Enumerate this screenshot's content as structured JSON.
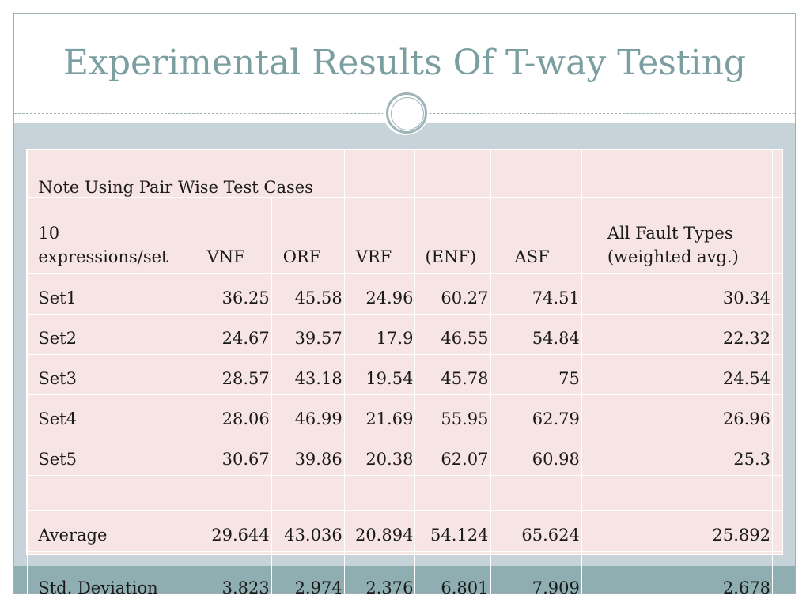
{
  "slide": {
    "title": "Experimental Results Of T-way Testing"
  },
  "table": {
    "note": "Note Using Pair Wise Test Cases",
    "headers": {
      "row_label_line1": "10",
      "row_label_line2": "expressions/set",
      "vnf": "VNF",
      "orf": "ORF",
      "vrf": "VRF",
      "enf": "(ENF)",
      "asf": "ASF",
      "all_line1": "All Fault Types",
      "all_line2": "(weighted avg.)"
    },
    "rows": [
      {
        "label": "Set1",
        "vnf": "36.25",
        "orf": "45.58",
        "vrf": "24.96",
        "enf": "60.27",
        "asf": "74.51",
        "all": "30.34"
      },
      {
        "label": "Set2",
        "vnf": "24.67",
        "orf": "39.57",
        "vrf": "17.9",
        "enf": "46.55",
        "asf": "54.84",
        "all": "22.32"
      },
      {
        "label": "Set3",
        "vnf": "28.57",
        "orf": "43.18",
        "vrf": "19.54",
        "enf": "45.78",
        "asf": "75",
        "all": "24.54"
      },
      {
        "label": "Set4",
        "vnf": "28.06",
        "orf": "46.99",
        "vrf": "21.69",
        "enf": "55.95",
        "asf": "62.79",
        "all": "26.96"
      },
      {
        "label": "Set5",
        "vnf": "30.67",
        "orf": "39.86",
        "vrf": "20.38",
        "enf": "62.07",
        "asf": "60.98",
        "all": "25.3"
      }
    ],
    "average": {
      "label": "Average",
      "vnf": "29.644",
      "orf": "43.036",
      "vrf": "20.894",
      "enf": "54.124",
      "asf": "65.624",
      "all": "25.892"
    },
    "std": {
      "label": "Std. Deviation",
      "vnf": "3.823",
      "orf": "2.974",
      "vrf": "2.376",
      "enf": "6.801",
      "asf": "7.909",
      "all": "2.678"
    }
  },
  "colors": {
    "title": "#7b9ea1",
    "band": "#c6d4d9",
    "bottom_band": "#8eaeb1",
    "table_bg": "#f7e4e4"
  },
  "icons": {
    "ornament": "circle-ornament-icon"
  }
}
